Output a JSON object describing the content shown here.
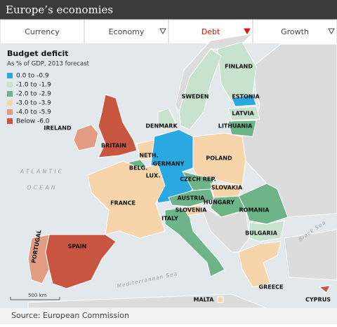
{
  "header": {
    "title": "Europe’s economies"
  },
  "tabs": [
    {
      "label": "Currency",
      "active": false,
      "dropdown": false
    },
    {
      "label": "Economy",
      "active": false,
      "dropdown": true
    },
    {
      "label": "Debt",
      "active": true,
      "dropdown": true
    },
    {
      "label": "Growth",
      "active": false,
      "dropdown": true
    }
  ],
  "legend": {
    "title": "Budget deficit",
    "subtitle": "As % of GDP, 2013 forecast",
    "items": [
      {
        "label": "0.0 to -0.9",
        "color": "#29a9e0"
      },
      {
        "label": "-1.0 to -1.9",
        "color": "#c8e3cd"
      },
      {
        "label": "-2.0 to -2.9",
        "color": "#6db488"
      },
      {
        "label": "-3.0 to -3.9",
        "color": "#f6d5ab"
      },
      {
        "label": "-4.0 to -5.9",
        "color": "#e29c83"
      },
      {
        "label": "Below -6.0",
        "color": "#c8553f"
      }
    ]
  },
  "countries": [
    {
      "label": "FINLAND",
      "legend_item": 1
    },
    {
      "label": "SWEDEN",
      "legend_item": 1
    },
    {
      "label": "ESTONIA",
      "legend_item": 0
    },
    {
      "label": "LATVIA",
      "legend_item": 1
    },
    {
      "label": "LITHUANIA",
      "legend_item": 2
    },
    {
      "label": "DENMARK",
      "legend_item": 1
    },
    {
      "label": "IRELAND",
      "legend_item": 4
    },
    {
      "label": "BRITAIN",
      "legend_item": 5
    },
    {
      "label": "NETH.",
      "legend_item": 3
    },
    {
      "label": "BELG.",
      "legend_item": 2
    },
    {
      "label": "LUX.",
      "legend_item": 0
    },
    {
      "label": "GERMANY",
      "legend_item": 0
    },
    {
      "label": "POLAND",
      "legend_item": 3
    },
    {
      "label": "CZECH REP.",
      "legend_item": 2
    },
    {
      "label": "SLOVAKIA",
      "legend_item": 3
    },
    {
      "label": "AUSTRIA",
      "legend_item": 2
    },
    {
      "label": "HUNGARY",
      "legend_item": 2
    },
    {
      "label": "SLOVENIA",
      "legend_item": 3
    },
    {
      "label": "FRANCE",
      "legend_item": 3
    },
    {
      "label": "ITALY",
      "legend_item": 2
    },
    {
      "label": "ROMANIA",
      "legend_item": 2
    },
    {
      "label": "BULGARIA",
      "legend_item": 1
    },
    {
      "label": "PORTUGAL",
      "legend_item": 4
    },
    {
      "label": "SPAIN",
      "legend_item": 5
    },
    {
      "label": "GREECE",
      "legend_item": 3
    },
    {
      "label": "MALTA",
      "legend_item": 3
    },
    {
      "label": "CYPRUS",
      "legend_item": 5
    }
  ],
  "sea_labels": [
    "ATLANTIC",
    "OCEAN",
    "Mediterranean Sea",
    "Black Sea"
  ],
  "scale": "500 km",
  "source": "Source: European Commission"
}
